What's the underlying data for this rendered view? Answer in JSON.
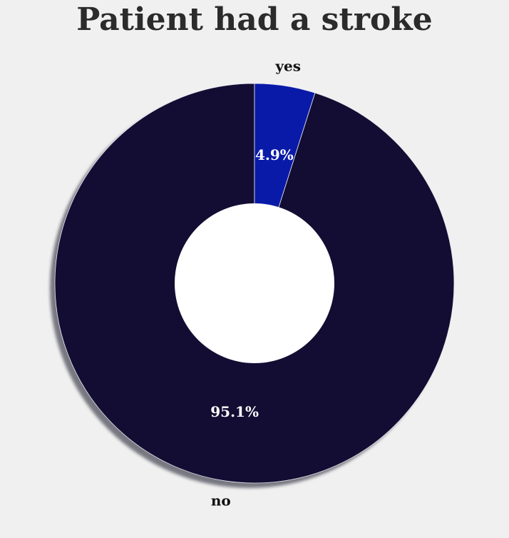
{
  "chart_data": {
    "type": "pie",
    "title": "Patient had a stroke",
    "categories": [
      "no",
      "yes"
    ],
    "values": [
      95.1,
      4.9
    ],
    "value_labels": [
      "95.1%",
      "4.9%"
    ],
    "colors": [
      "#130d33",
      "#0a1aa8"
    ],
    "donut": true,
    "shadow": true,
    "background": "#f0f0f0",
    "legend": "none"
  }
}
